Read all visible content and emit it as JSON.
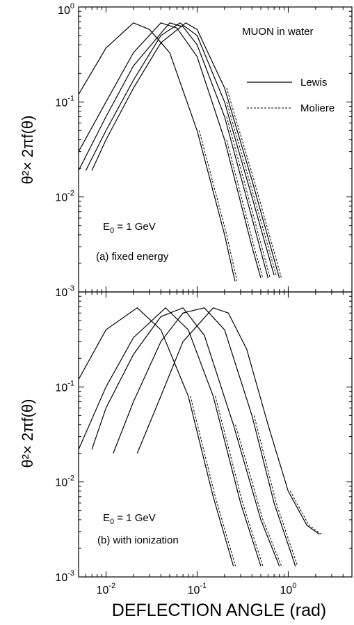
{
  "chart_data": [
    {
      "type": "line",
      "panel": "top",
      "ylabel": "θ²× 2πf(θ)",
      "xscale": "log",
      "yscale": "log",
      "xlim": [
        0.005,
        5
      ],
      "ylim": [
        0.001,
        1
      ],
      "y_ticks": [
        {
          "base": "10",
          "exp": "0"
        },
        {
          "base": "10",
          "exp": "-1"
        },
        {
          "base": "10",
          "exp": "-2"
        },
        {
          "base": "10",
          "exp": "-3"
        }
      ],
      "annotations": {
        "title": "MUON in water",
        "energy_main": "E",
        "energy_sub": "0",
        "energy_rest": " = 1 GeV",
        "panel_label": "(a) fixed energy"
      },
      "legend": [
        {
          "name": "Lewis",
          "style": "solid"
        },
        {
          "name": "Moliere",
          "style": "dashed"
        }
      ],
      "series": [
        {
          "x": [
            0.005,
            0.01,
            0.02,
            0.03,
            0.05,
            0.1,
            0.2,
            0.26
          ],
          "y": [
            0.12,
            0.37,
            0.68,
            0.58,
            0.33,
            0.05,
            0.004,
            0.0013
          ]
        },
        {
          "x": [
            0.005,
            0.01,
            0.02,
            0.04,
            0.06,
            0.1,
            0.2,
            0.4,
            0.5
          ],
          "y": [
            0.03,
            0.1,
            0.33,
            0.68,
            0.6,
            0.3,
            0.04,
            0.003,
            0.0014
          ]
        },
        {
          "x": [
            0.005,
            0.01,
            0.02,
            0.05,
            0.07,
            0.1,
            0.2,
            0.4,
            0.6
          ],
          "y": [
            0.019,
            0.07,
            0.24,
            0.68,
            0.62,
            0.4,
            0.07,
            0.006,
            0.0014
          ]
        },
        {
          "x": [
            0.006,
            0.01,
            0.02,
            0.04,
            0.065,
            0.1,
            0.2,
            0.4,
            0.7
          ],
          "y": [
            0.019,
            0.05,
            0.17,
            0.5,
            0.68,
            0.5,
            0.1,
            0.01,
            0.0015
          ]
        },
        {
          "x": [
            0.007,
            0.01,
            0.02,
            0.04,
            0.075,
            0.1,
            0.2,
            0.4,
            0.8
          ],
          "y": [
            0.019,
            0.04,
            0.14,
            0.42,
            0.68,
            0.58,
            0.14,
            0.015,
            0.0014
          ]
        }
      ]
    },
    {
      "type": "line",
      "panel": "bottom",
      "xlabel": "DEFLECTION ANGLE (rad)",
      "ylabel": "θ²× 2πf(θ)",
      "xscale": "log",
      "yscale": "log",
      "xlim": [
        0.005,
        5
      ],
      "ylim": [
        0.001,
        1
      ],
      "x_ticks": [
        {
          "base": "10",
          "exp": "-2",
          "value": 0.01
        },
        {
          "base": "10",
          "exp": "-1",
          "value": 0.1
        },
        {
          "base": "10",
          "exp": "0",
          "value": 1
        }
      ],
      "y_ticks": [
        {
          "base": "10",
          "exp": "-1"
        },
        {
          "base": "10",
          "exp": "-2"
        },
        {
          "base": "10",
          "exp": "-3"
        }
      ],
      "annotations": {
        "energy_main": "E",
        "energy_sub": "0",
        "energy_rest": " = 1 GeV",
        "panel_label": "(b) with ionization"
      },
      "series": [
        {
          "x": [
            0.005,
            0.01,
            0.022,
            0.04,
            0.08,
            0.15,
            0.25
          ],
          "y": [
            0.12,
            0.4,
            0.68,
            0.4,
            0.08,
            0.007,
            0.0013
          ]
        },
        {
          "x": [
            0.005,
            0.01,
            0.02,
            0.045,
            0.08,
            0.15,
            0.3,
            0.5
          ],
          "y": [
            0.022,
            0.1,
            0.33,
            0.68,
            0.4,
            0.08,
            0.006,
            0.0013
          ]
        },
        {
          "x": [
            0.007,
            0.01,
            0.02,
            0.04,
            0.07,
            0.12,
            0.25,
            0.5,
            0.8
          ],
          "y": [
            0.022,
            0.06,
            0.22,
            0.55,
            0.68,
            0.35,
            0.04,
            0.004,
            0.0013
          ]
        },
        {
          "x": [
            0.012,
            0.02,
            0.04,
            0.07,
            0.12,
            0.2,
            0.4,
            0.7,
            1.2
          ],
          "y": [
            0.02,
            0.07,
            0.3,
            0.6,
            0.68,
            0.4,
            0.05,
            0.006,
            0.0013
          ]
        },
        {
          "x": [
            0.022,
            0.04,
            0.07,
            0.15,
            0.22,
            0.35,
            0.6,
            1.0,
            1.6,
            2.2
          ],
          "y": [
            0.02,
            0.08,
            0.3,
            0.68,
            0.6,
            0.25,
            0.04,
            0.008,
            0.0035,
            0.0028
          ]
        }
      ]
    }
  ]
}
